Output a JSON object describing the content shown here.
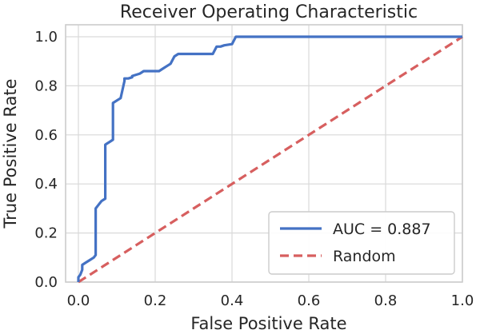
{
  "chart_data": {
    "type": "line",
    "title": "Receiver Operating Characteristic",
    "xlabel": "False Positive Rate",
    "ylabel": "True Positive Rate",
    "xlim": [
      0,
      1
    ],
    "ylim": [
      0,
      1
    ],
    "xticks": [
      "0.0",
      "0.2",
      "0.4",
      "0.6",
      "0.8",
      "1.0"
    ],
    "yticks": [
      "0.0",
      "0.2",
      "0.4",
      "0.6",
      "0.8",
      "1.0"
    ],
    "grid": true,
    "legend_position": "lower-right",
    "series": [
      {
        "name": "AUC = 0.887",
        "color": "#4472c4",
        "style": "solid",
        "x": [
          0.0,
          0.0,
          0.0,
          0.005,
          0.01,
          0.01,
          0.02,
          0.03,
          0.04,
          0.045,
          0.045,
          0.05,
          0.06,
          0.07,
          0.07,
          0.075,
          0.08,
          0.09,
          0.09,
          0.1,
          0.11,
          0.12,
          0.12,
          0.13,
          0.14,
          0.14,
          0.15,
          0.16,
          0.16,
          0.17,
          0.18,
          0.2,
          0.21,
          0.22,
          0.23,
          0.24,
          0.25,
          0.26,
          0.27,
          0.28,
          0.29,
          0.3,
          0.33,
          0.35,
          0.36,
          0.36,
          0.37,
          0.38,
          0.4,
          0.41,
          0.41,
          0.45,
          0.5,
          0.6,
          0.7,
          0.8,
          0.9,
          1.0
        ],
        "y": [
          0.0,
          0.01,
          0.02,
          0.03,
          0.05,
          0.07,
          0.08,
          0.09,
          0.1,
          0.11,
          0.3,
          0.31,
          0.33,
          0.34,
          0.56,
          0.565,
          0.57,
          0.58,
          0.73,
          0.74,
          0.75,
          0.82,
          0.83,
          0.83,
          0.835,
          0.84,
          0.845,
          0.85,
          0.85,
          0.86,
          0.86,
          0.86,
          0.86,
          0.87,
          0.88,
          0.89,
          0.92,
          0.93,
          0.93,
          0.93,
          0.93,
          0.93,
          0.93,
          0.93,
          0.96,
          0.96,
          0.96,
          0.965,
          0.97,
          1.0,
          1.0,
          1.0,
          1.0,
          1.0,
          1.0,
          1.0,
          1.0,
          1.0
        ]
      },
      {
        "name": "Random",
        "color": "#d75f5f",
        "style": "dashed",
        "x": [
          0,
          1
        ],
        "y": [
          0,
          1
        ]
      }
    ]
  }
}
